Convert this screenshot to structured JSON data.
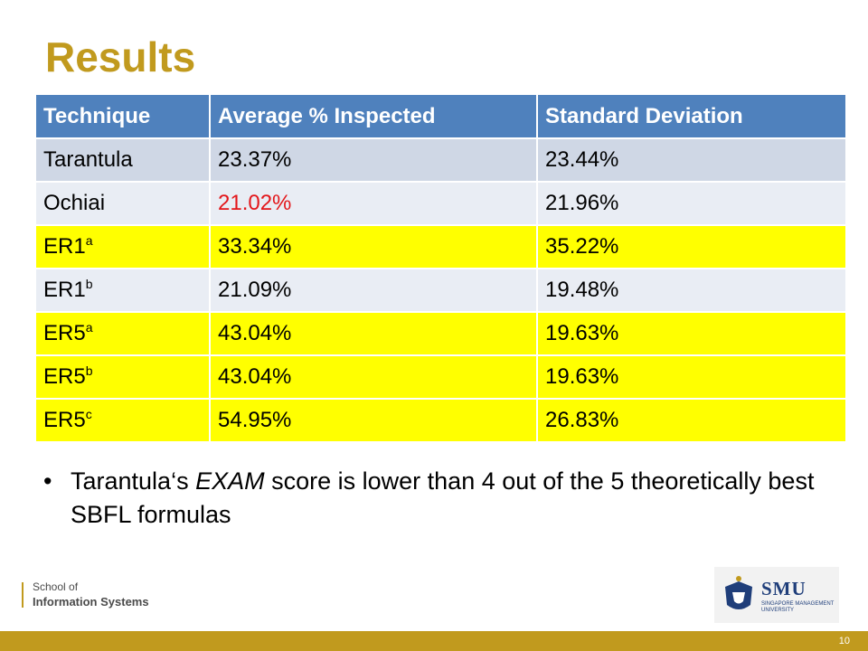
{
  "slide": {
    "title": "Results",
    "table": {
      "headers": [
        "Technique",
        "Average % Inspected",
        "Standard Deviation"
      ],
      "rows": [
        {
          "technique": "Tarantula",
          "sup": "",
          "avg": "23.37%",
          "std": "23.44%"
        },
        {
          "technique": "Ochiai",
          "sup": "",
          "avg": "21.02%",
          "std": "21.96%"
        },
        {
          "technique": "ER1",
          "sup": "a",
          "avg": "33.34%",
          "std": "35.22%"
        },
        {
          "technique": "ER1",
          "sup": "b",
          "avg": "21.09%",
          "std": "19.48%"
        },
        {
          "technique": "ER5",
          "sup": "a",
          "avg": "43.04%",
          "std": "19.63%"
        },
        {
          "technique": "ER5",
          "sup": "b",
          "avg": "43.04%",
          "std": "19.63%"
        },
        {
          "technique": "ER5",
          "sup": "c",
          "avg": "54.95%",
          "std": "26.83%"
        }
      ]
    },
    "bullet": {
      "before": "Tarantula‘s ",
      "emphasis": "EXAM",
      "after": " score is lower than 4 out of the 5 theoretically best SBFL formulas"
    },
    "footer": {
      "school_line1": "School of",
      "school_line2": "Information Systems",
      "university_abbr": "SMU",
      "university_full": "SINGAPORE MANAGEMENT UNIVERSITY",
      "page_number": "10"
    },
    "colors": {
      "title": "#C19A1E",
      "header_bg": "#4F81BD",
      "row_band_a": "#CFD7E5",
      "row_band_b": "#E9EDF4",
      "highlight": "#FFFF00",
      "emphasis_value": "#E3171B",
      "footer_bar": "#C19A1E",
      "smu_blue": "#1F3E7A"
    }
  }
}
